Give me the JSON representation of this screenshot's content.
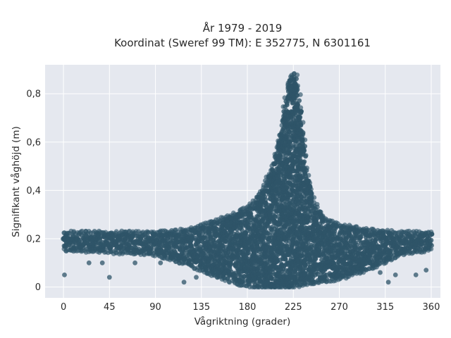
{
  "chart_data": {
    "type": "scatter",
    "title": "År 1979 - 2019",
    "subtitle": "Koordinat (Sweref 99 TM): E 352775, N 6301161",
    "xlabel": "Vågriktning (grader)",
    "ylabel": "Signifikant våghöjd (m)",
    "xlim": [
      -18,
      369
    ],
    "ylim": [
      -0.045,
      0.92
    ],
    "x_ticks": [
      0,
      45,
      90,
      135,
      180,
      225,
      270,
      315,
      360
    ],
    "x_tick_labels": [
      "0",
      "45",
      "90",
      "135",
      "180",
      "225",
      "270",
      "315",
      "360"
    ],
    "y_ticks": [
      0,
      0.2,
      0.4,
      0.6,
      0.8
    ],
    "y_tick_labels": [
      "0",
      "0,2",
      "0,4",
      "0,6",
      "0,8"
    ],
    "grid": true,
    "background": "#e5e8ef",
    "marker_color": "#2e5468",
    "envelope": {
      "x": [
        0,
        45,
        90,
        120,
        150,
        170,
        185,
        195,
        205,
        212,
        218,
        222,
        225,
        228,
        232,
        238,
        245,
        255,
        270,
        300,
        330,
        360
      ],
      "y_max": [
        0.22,
        0.22,
        0.22,
        0.23,
        0.27,
        0.3,
        0.34,
        0.4,
        0.5,
        0.64,
        0.79,
        0.87,
        0.88,
        0.87,
        0.76,
        0.5,
        0.35,
        0.28,
        0.25,
        0.23,
        0.22,
        0.22
      ],
      "y_min": [
        0.16,
        0.15,
        0.14,
        0.1,
        0.05,
        0.02,
        0.01,
        0.0,
        0.0,
        0.0,
        0.0,
        0.0,
        0.01,
        0.01,
        0.01,
        0.02,
        0.02,
        0.03,
        0.04,
        0.08,
        0.14,
        0.16
      ]
    },
    "outliers": [
      {
        "x": 1,
        "y": 0.05
      },
      {
        "x": 45,
        "y": 0.04
      },
      {
        "x": 25,
        "y": 0.1
      },
      {
        "x": 38,
        "y": 0.1
      },
      {
        "x": 70,
        "y": 0.1
      },
      {
        "x": 95,
        "y": 0.1
      },
      {
        "x": 118,
        "y": 0.02
      },
      {
        "x": 130,
        "y": 0.04
      },
      {
        "x": 318,
        "y": 0.02
      },
      {
        "x": 325,
        "y": 0.05
      },
      {
        "x": 345,
        "y": 0.05
      },
      {
        "x": 355,
        "y": 0.07
      },
      {
        "x": 310,
        "y": 0.06
      },
      {
        "x": 300,
        "y": 0.1
      }
    ]
  }
}
